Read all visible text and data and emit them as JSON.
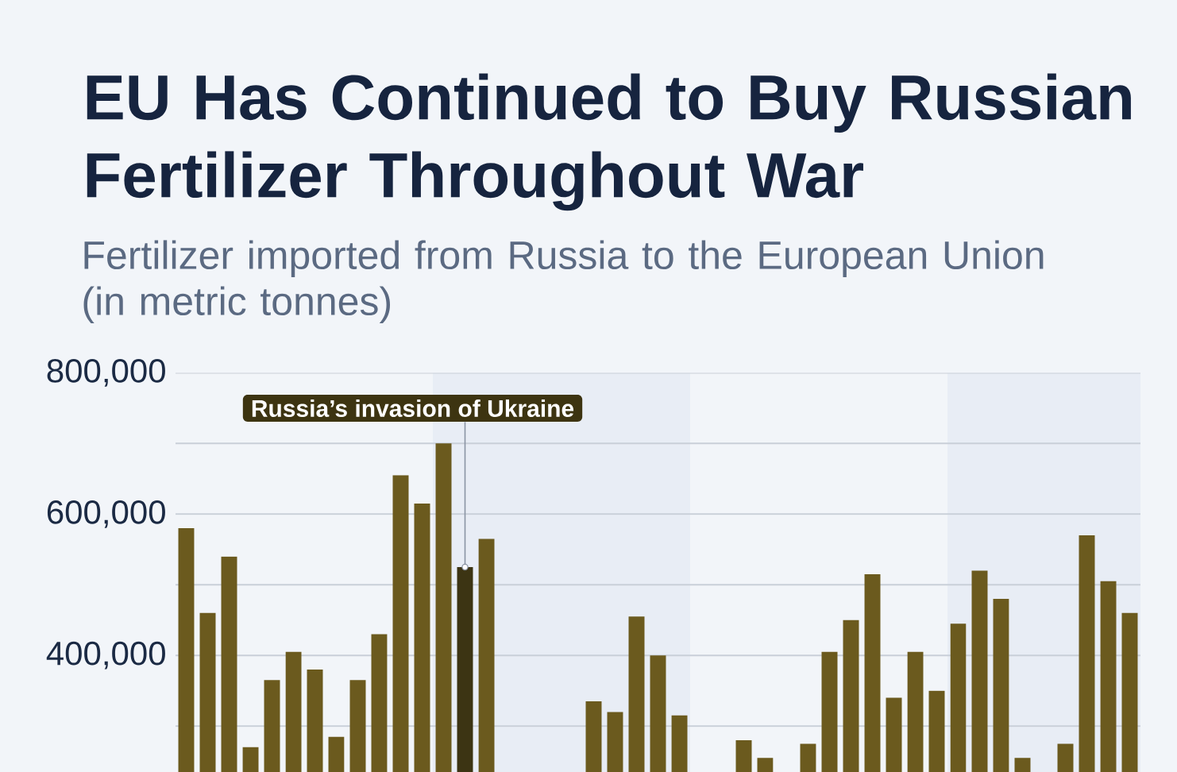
{
  "chart_data": {
    "type": "bar",
    "title": "EU Has Continued to Buy Russian Fertilizer Throughout War",
    "subtitle": "Fertilizer imported from Russia to the European Union (in metric tonnes)",
    "categories": [
      null,
      null,
      null,
      null,
      null,
      null,
      null,
      null,
      null,
      null,
      null,
      null,
      null,
      null,
      null,
      null,
      null,
      null,
      null,
      null,
      null,
      null,
      null,
      null,
      null,
      null,
      null,
      null,
      null,
      null,
      null,
      null,
      null,
      null,
      null,
      null,
      null,
      null,
      null,
      null,
      null,
      null,
      null,
      null,
      null
    ],
    "values": [
      580000,
      460000,
      540000,
      270000,
      365000,
      405000,
      380000,
      285000,
      365000,
      430000,
      655000,
      615000,
      700000,
      525000,
      565000,
      null,
      null,
      null,
      null,
      335000,
      320000,
      455000,
      400000,
      315000,
      null,
      null,
      280000,
      255000,
      null,
      275000,
      405000,
      450000,
      515000,
      340000,
      405000,
      350000,
      445000,
      520000,
      480000,
      255000,
      null,
      275000,
      570000,
      505000,
      460000
    ],
    "colors": [
      "#6b5a1e",
      "#6b5a1e",
      "#6b5a1e",
      "#6b5a1e",
      "#6b5a1e",
      "#6b5a1e",
      "#6b5a1e",
      "#6b5a1e",
      "#6b5a1e",
      "#6b5a1e",
      "#6b5a1e",
      "#6b5a1e",
      "#6b5a1e",
      "#3c3413",
      "#6b5a1e",
      "#6b5a1e",
      "#6b5a1e",
      "#6b5a1e",
      "#6b5a1e",
      "#6b5a1e",
      "#6b5a1e",
      "#6b5a1e",
      "#6b5a1e",
      "#6b5a1e",
      "#6b5a1e",
      "#6b5a1e",
      "#6b5a1e",
      "#6b5a1e",
      "#6b5a1e",
      "#6b5a1e",
      "#6b5a1e",
      "#6b5a1e",
      "#6b5a1e",
      "#6b5a1e",
      "#6b5a1e",
      "#6b5a1e",
      "#6b5a1e",
      "#6b5a1e",
      "#6b5a1e",
      "#6b5a1e",
      "#6b5a1e",
      "#6b5a1e",
      "#6b5a1e",
      "#6b5a1e",
      "#6b5a1e"
    ],
    "ylim": [
      235000,
      800000
    ],
    "yticks": [
      {
        "value": 300000,
        "label": null
      },
      {
        "value": 400000,
        "label": "400,000"
      },
      {
        "value": 500000,
        "label": null
      },
      {
        "value": 600000,
        "label": "600,000"
      },
      {
        "value": 700000,
        "label": null
      },
      {
        "value": 800000,
        "label": "800,000"
      }
    ],
    "grid": "y",
    "annotations": [
      "Russia’s invasion of Ukraine"
    ]
  }
}
